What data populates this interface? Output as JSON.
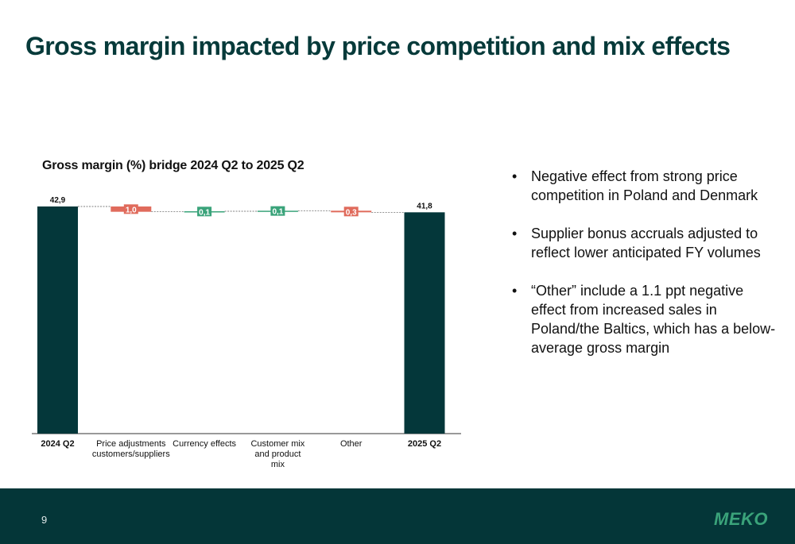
{
  "page": {
    "title": "Gross margin impacted by price competition and mix effects",
    "page_number": "9",
    "logo_text": "MEKO"
  },
  "bullets": [
    "Negative effect from strong price competition in Poland and Denmark",
    "Supplier bonus accruals adjusted to reflect lower anticipated FY volumes",
    "“Other” include a 1.1 ppt negative effect from increased sales in Poland/the Baltics, which has a below-average gross margin"
  ],
  "colors": {
    "total": "#04373a",
    "negative": "#e06b5c",
    "positive": "#3aa37a",
    "title": "#063a3a",
    "footer": "#043638"
  },
  "chart_data": {
    "type": "waterfall",
    "title": "Gross margin (%) bridge 2024 Q2 to 2025 Q2",
    "ylim": [
      0,
      42.9
    ],
    "grid": false,
    "bars": [
      {
        "category": "2024 Q2",
        "kind": "total",
        "value": 42.9,
        "label": "42,9"
      },
      {
        "category": "Price adjustments customers/suppliers",
        "kind": "negative",
        "value": -1.0,
        "label": "1,0"
      },
      {
        "category": "Currency effects",
        "kind": "positive",
        "value": 0.1,
        "label": "0,1"
      },
      {
        "category": "Customer mix and product mix",
        "kind": "positive",
        "value": 0.1,
        "label": "0,1"
      },
      {
        "category": "Other",
        "kind": "negative",
        "value": -0.3,
        "label": "0,3"
      },
      {
        "category": "2025 Q2",
        "kind": "total",
        "value": 41.8,
        "label": "41,8"
      }
    ]
  }
}
